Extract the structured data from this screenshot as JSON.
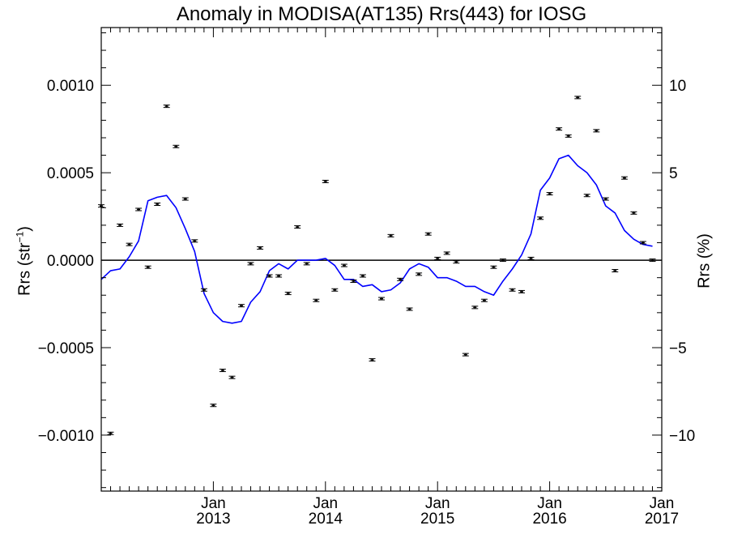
{
  "chart_data": {
    "type": "scatter",
    "title": "Anomaly in MODISA(AT135) Rrs(443) for IOSG",
    "ylabel_left": "Rrs (str",
    "ylabel_left_sup": "−1",
    "ylabel_left_close": ")",
    "ylabel_right": "Rrs (%)",
    "x_start": 2012.0,
    "x_end": 2017.0,
    "ylim": [
      -0.00132,
      0.00133
    ],
    "ylim_right": [
      -13.2,
      13.3
    ],
    "y_ticks": [
      {
        "value": 0.001,
        "label": "0.0010"
      },
      {
        "value": 0.0005,
        "label": "0.0005"
      },
      {
        "value": 0.0,
        "label": "0.0000"
      },
      {
        "value": -0.0005,
        "label": "−0.0005"
      },
      {
        "value": -0.001,
        "label": "−0.0010"
      }
    ],
    "y_right_ticks": [
      {
        "value": 10,
        "label": "10"
      },
      {
        "value": 5,
        "label": "5"
      },
      {
        "value": -5,
        "label": "−5"
      },
      {
        "value": -10,
        "label": "−10"
      }
    ],
    "x_ticks": [
      {
        "value": 2013.0,
        "month": "Jan",
        "year": "2013"
      },
      {
        "value": 2014.0,
        "month": "Jan",
        "year": "2014"
      },
      {
        "value": 2015.0,
        "month": "Jan",
        "year": "2015"
      },
      {
        "value": 2016.0,
        "month": "Jan",
        "year": "2016"
      },
      {
        "value": 2017.0,
        "month": "Jan",
        "year": "2017"
      }
    ],
    "zero_line": true,
    "series": [
      {
        "kind": "points_with_errorbars",
        "color": "#000000",
        "points": [
          {
            "x": 2012.0,
            "y": 0.00031
          },
          {
            "x": 2012.083,
            "y": -0.00099
          },
          {
            "x": 2012.167,
            "y": 0.0002
          },
          {
            "x": 2012.25,
            "y": 9e-05
          },
          {
            "x": 2012.333,
            "y": 0.00029
          },
          {
            "x": 2012.417,
            "y": -4e-05
          },
          {
            "x": 2012.5,
            "y": 0.00032
          },
          {
            "x": 2012.583,
            "y": 0.00088
          },
          {
            "x": 2012.667,
            "y": 0.00065
          },
          {
            "x": 2012.75,
            "y": 0.00035
          },
          {
            "x": 2012.833,
            "y": 0.00011
          },
          {
            "x": 2012.917,
            "y": -0.00017
          },
          {
            "x": 2013.0,
            "y": -0.00083
          },
          {
            "x": 2013.083,
            "y": -0.00063
          },
          {
            "x": 2013.167,
            "y": -0.00067
          },
          {
            "x": 2013.25,
            "y": -0.00026
          },
          {
            "x": 2013.333,
            "y": -2e-05
          },
          {
            "x": 2013.417,
            "y": 7e-05
          },
          {
            "x": 2013.5,
            "y": -9e-05
          },
          {
            "x": 2013.583,
            "y": -9e-05
          },
          {
            "x": 2013.667,
            "y": -0.00019
          },
          {
            "x": 2013.75,
            "y": 0.00019
          },
          {
            "x": 2013.833,
            "y": -2e-05
          },
          {
            "x": 2013.917,
            "y": -0.00023
          },
          {
            "x": 2014.0,
            "y": 0.00045
          },
          {
            "x": 2014.083,
            "y": -0.00017
          },
          {
            "x": 2014.167,
            "y": -3e-05
          },
          {
            "x": 2014.25,
            "y": -0.00012
          },
          {
            "x": 2014.333,
            "y": -9e-05
          },
          {
            "x": 2014.417,
            "y": -0.00057
          },
          {
            "x": 2014.5,
            "y": -0.00022
          },
          {
            "x": 2014.583,
            "y": 0.00014
          },
          {
            "x": 2014.667,
            "y": -0.00011
          },
          {
            "x": 2014.75,
            "y": -0.00028
          },
          {
            "x": 2014.833,
            "y": -8e-05
          },
          {
            "x": 2014.917,
            "y": 0.00015
          },
          {
            "x": 2015.0,
            "y": 1e-05
          },
          {
            "x": 2015.083,
            "y": 4e-05
          },
          {
            "x": 2015.167,
            "y": -1e-05
          },
          {
            "x": 2015.25,
            "y": -0.00054
          },
          {
            "x": 2015.333,
            "y": -0.00027
          },
          {
            "x": 2015.417,
            "y": -0.00023
          },
          {
            "x": 2015.5,
            "y": -4e-05
          },
          {
            "x": 2015.583,
            "y": 0.0
          },
          {
            "x": 2015.667,
            "y": -0.00017
          },
          {
            "x": 2015.75,
            "y": -0.00018
          },
          {
            "x": 2015.833,
            "y": 1e-05
          },
          {
            "x": 2015.917,
            "y": 0.00024
          },
          {
            "x": 2016.0,
            "y": 0.00038
          },
          {
            "x": 2016.083,
            "y": 0.00075
          },
          {
            "x": 2016.167,
            "y": 0.00071
          },
          {
            "x": 2016.25,
            "y": 0.00093
          },
          {
            "x": 2016.333,
            "y": 0.00037
          },
          {
            "x": 2016.417,
            "y": 0.00074
          },
          {
            "x": 2016.5,
            "y": 0.00035
          },
          {
            "x": 2016.583,
            "y": -6e-05
          },
          {
            "x": 2016.667,
            "y": 0.00047
          },
          {
            "x": 2016.75,
            "y": 0.00027
          },
          {
            "x": 2016.833,
            "y": 0.0001
          },
          {
            "x": 2016.917,
            "y": 0.0
          }
        ]
      },
      {
        "kind": "line",
        "color": "#0000ff",
        "points": [
          {
            "x": 2012.0,
            "y": -0.00011
          },
          {
            "x": 2012.083,
            "y": -6e-05
          },
          {
            "x": 2012.167,
            "y": -5e-05
          },
          {
            "x": 2012.25,
            "y": 2e-05
          },
          {
            "x": 2012.333,
            "y": 0.00011
          },
          {
            "x": 2012.417,
            "y": 0.00034
          },
          {
            "x": 2012.5,
            "y": 0.00036
          },
          {
            "x": 2012.583,
            "y": 0.00037
          },
          {
            "x": 2012.667,
            "y": 0.0003
          },
          {
            "x": 2012.75,
            "y": 0.00018
          },
          {
            "x": 2012.833,
            "y": 5e-05
          },
          {
            "x": 2012.917,
            "y": -0.00019
          },
          {
            "x": 2013.0,
            "y": -0.0003
          },
          {
            "x": 2013.083,
            "y": -0.00035
          },
          {
            "x": 2013.167,
            "y": -0.00036
          },
          {
            "x": 2013.25,
            "y": -0.00035
          },
          {
            "x": 2013.333,
            "y": -0.00024
          },
          {
            "x": 2013.417,
            "y": -0.00018
          },
          {
            "x": 2013.5,
            "y": -6e-05
          },
          {
            "x": 2013.583,
            "y": -2e-05
          },
          {
            "x": 2013.667,
            "y": -5e-05
          },
          {
            "x": 2013.75,
            "y": 0.0
          },
          {
            "x": 2013.833,
            "y": 0.0
          },
          {
            "x": 2013.917,
            "y": 0.0
          },
          {
            "x": 2014.0,
            "y": 1e-05
          },
          {
            "x": 2014.083,
            "y": -3e-05
          },
          {
            "x": 2014.167,
            "y": -0.00011
          },
          {
            "x": 2014.25,
            "y": -0.00011
          },
          {
            "x": 2014.333,
            "y": -0.00015
          },
          {
            "x": 2014.417,
            "y": -0.00014
          },
          {
            "x": 2014.5,
            "y": -0.00018
          },
          {
            "x": 2014.583,
            "y": -0.00017
          },
          {
            "x": 2014.667,
            "y": -0.00013
          },
          {
            "x": 2014.75,
            "y": -5e-05
          },
          {
            "x": 2014.833,
            "y": -2e-05
          },
          {
            "x": 2014.917,
            "y": -4e-05
          },
          {
            "x": 2015.0,
            "y": -0.0001
          },
          {
            "x": 2015.083,
            "y": -0.0001
          },
          {
            "x": 2015.167,
            "y": -0.00012
          },
          {
            "x": 2015.25,
            "y": -0.00015
          },
          {
            "x": 2015.333,
            "y": -0.00015
          },
          {
            "x": 2015.417,
            "y": -0.00018
          },
          {
            "x": 2015.5,
            "y": -0.0002
          },
          {
            "x": 2015.583,
            "y": -0.00012
          },
          {
            "x": 2015.667,
            "y": -5e-05
          },
          {
            "x": 2015.75,
            "y": 3e-05
          },
          {
            "x": 2015.833,
            "y": 0.00015
          },
          {
            "x": 2015.917,
            "y": 0.0004
          },
          {
            "x": 2016.0,
            "y": 0.00047
          },
          {
            "x": 2016.083,
            "y": 0.00058
          },
          {
            "x": 2016.167,
            "y": 0.0006
          },
          {
            "x": 2016.25,
            "y": 0.00054
          },
          {
            "x": 2016.333,
            "y": 0.0005
          },
          {
            "x": 2016.417,
            "y": 0.00043
          },
          {
            "x": 2016.5,
            "y": 0.00031
          },
          {
            "x": 2016.583,
            "y": 0.00027
          },
          {
            "x": 2016.667,
            "y": 0.00017
          },
          {
            "x": 2016.75,
            "y": 0.00012
          },
          {
            "x": 2016.833,
            "y": 9e-05
          },
          {
            "x": 2016.917,
            "y": 8e-05
          }
        ]
      }
    ]
  }
}
